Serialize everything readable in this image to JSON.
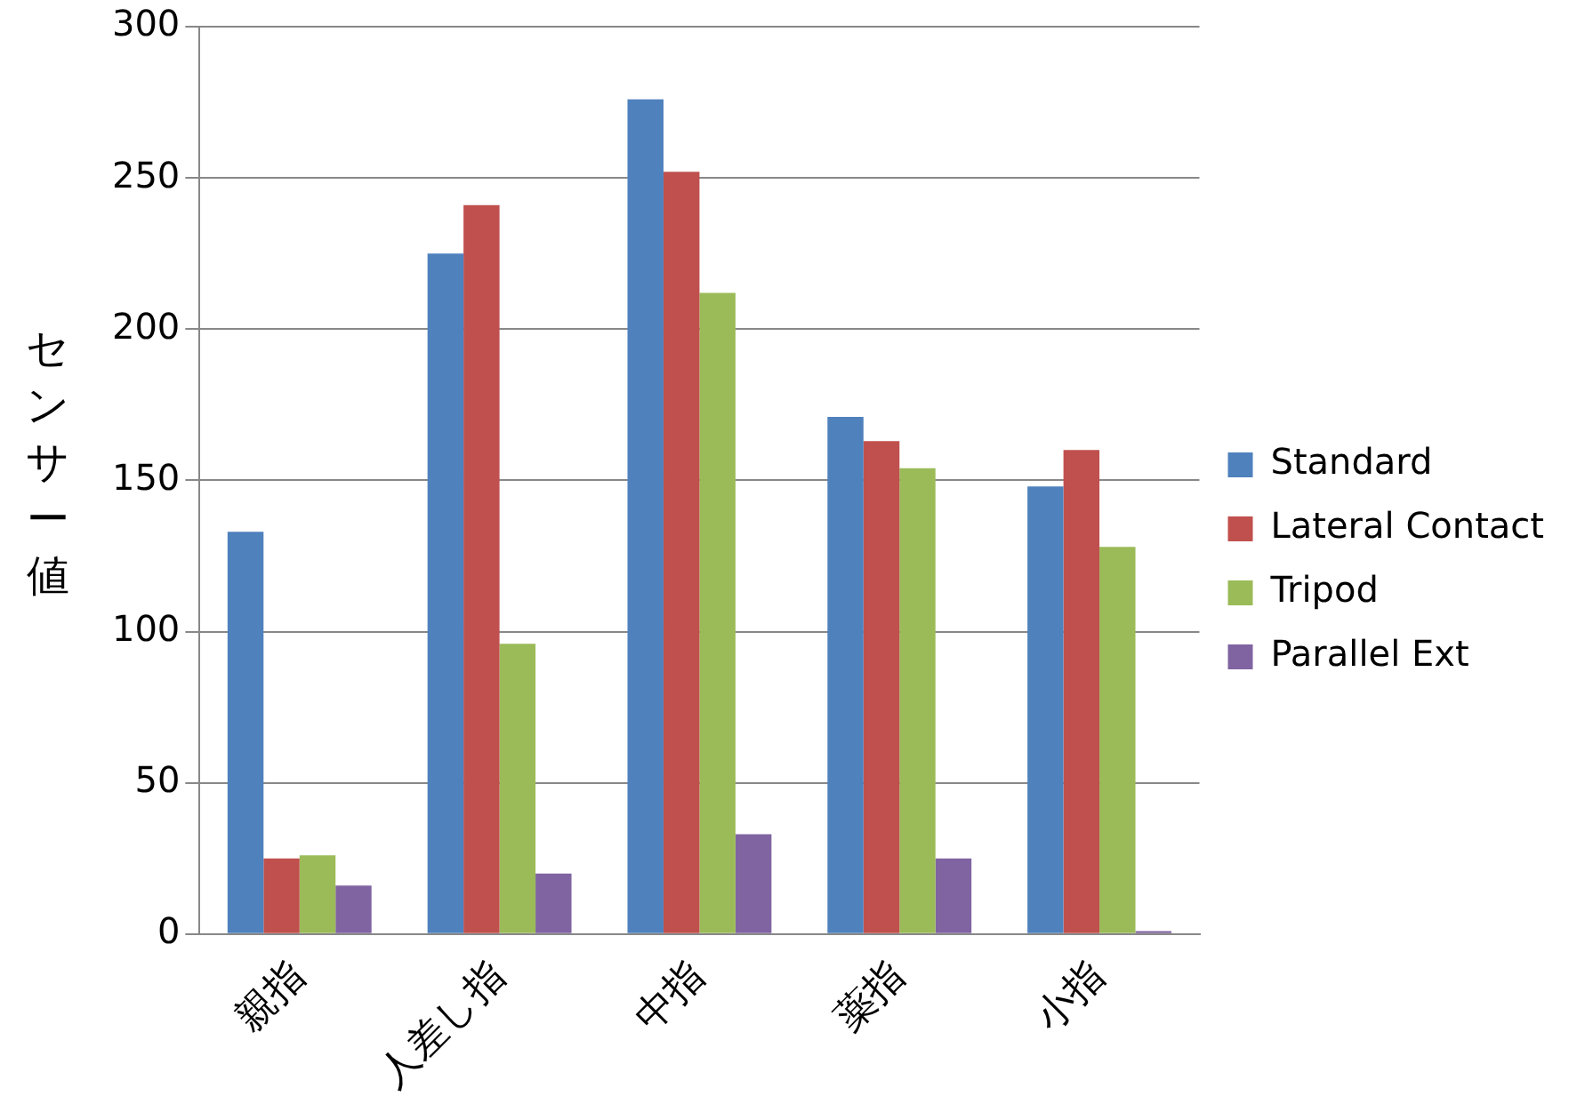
{
  "chart_data": {
    "type": "bar",
    "ylabel": "センサー値",
    "categories": [
      "親指",
      "人差し指",
      "中指",
      "薬指",
      "小指"
    ],
    "series": [
      {
        "name": "Standard",
        "color": "#4f81bd",
        "values": [
          133,
          225,
          276,
          171,
          148
        ]
      },
      {
        "name": "Lateral Contact",
        "color": "#c0504d",
        "values": [
          25,
          241,
          252,
          163,
          160
        ]
      },
      {
        "name": "Tripod",
        "color": "#9bbb59",
        "values": [
          26,
          96,
          212,
          154,
          128
        ]
      },
      {
        "name": "Parallel Ext",
        "color": "#8064a2",
        "values": [
          16,
          20,
          33,
          25,
          1
        ]
      }
    ],
    "ylim": [
      0,
      300
    ],
    "yticks": [
      0,
      50,
      100,
      150,
      200,
      250,
      300
    ],
    "grid": "y",
    "legend": "right"
  }
}
